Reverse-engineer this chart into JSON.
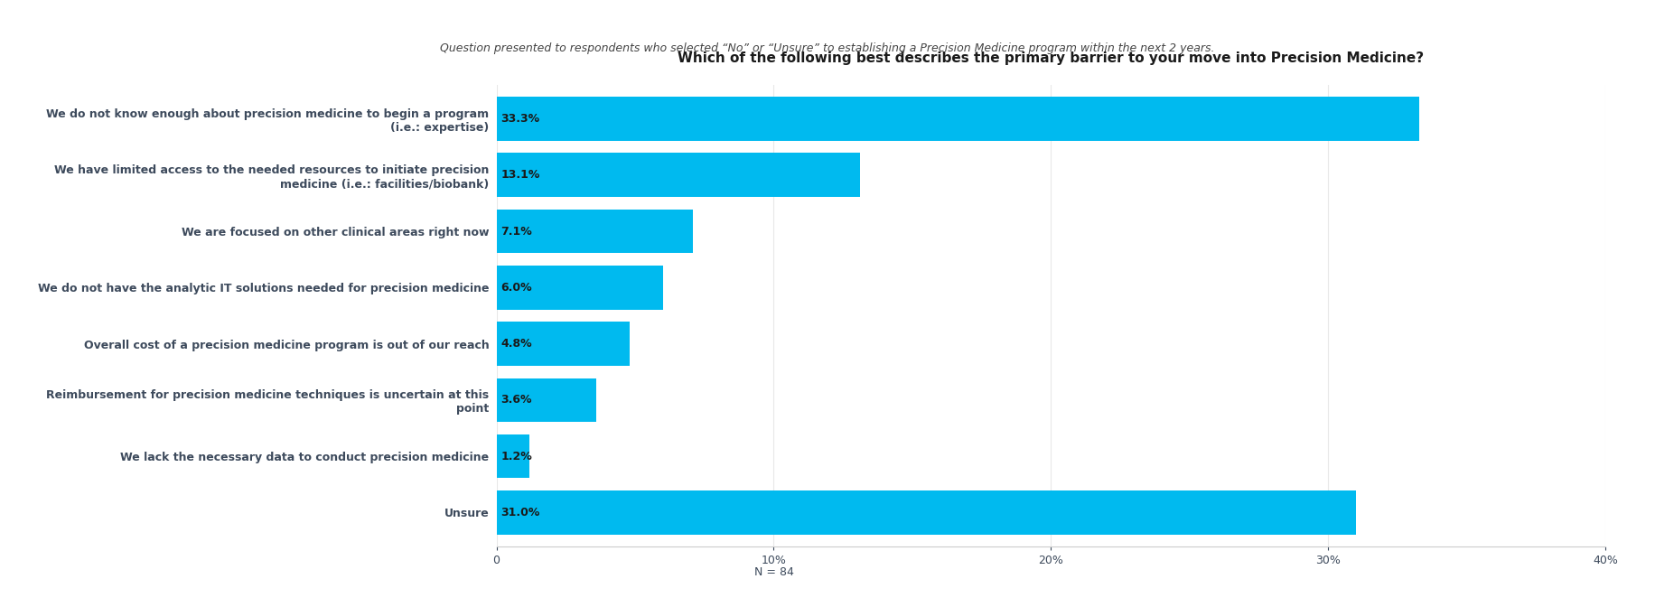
{
  "title": "Which of the following best describes the primary barrier to your move into Precision Medicine?",
  "subtitle": "Question presented to respondents who selected “No” or “Unsure” to establishing a Precision Medicine program within the next 2 years.",
  "categories": [
    "Unsure",
    "We lack the necessary data to conduct precision medicine",
    "Reimbursement for precision medicine techniques is uncertain at this\npoint",
    "Overall cost of a precision medicine program is out of our reach",
    "We do not have the analytic IT solutions needed for precision medicine",
    "We are focused on other clinical areas right now",
    "We have limited access to the needed resources to initiate precision\nmedicine (i.e.: facilities/biobank)",
    "We do not know enough about precision medicine to begin a program\n(i.e.: expertise)"
  ],
  "values": [
    31.0,
    1.2,
    3.6,
    4.8,
    6.0,
    7.1,
    13.1,
    33.3
  ],
  "labels": [
    "31.0%",
    "1.2%",
    "3.6%",
    "4.8%",
    "6.0%",
    "7.1%",
    "13.1%",
    "33.3%"
  ],
  "bar_color": "#00BAEF",
  "bar_height": 0.78,
  "xlim": [
    0,
    40
  ],
  "xticks": [
    0,
    10,
    20,
    30,
    40
  ],
  "xtick_labels": [
    "0",
    "10%",
    "20%",
    "30%",
    "40%"
  ],
  "xlabel_note": "N = 84",
  "title_fontsize": 11,
  "subtitle_fontsize": 9,
  "label_fontsize": 9,
  "ytick_fontsize": 9,
  "xtick_fontsize": 9,
  "background_color": "#ffffff",
  "label_color": "#1a1a1a",
  "ytick_color": "#3d4a5c"
}
